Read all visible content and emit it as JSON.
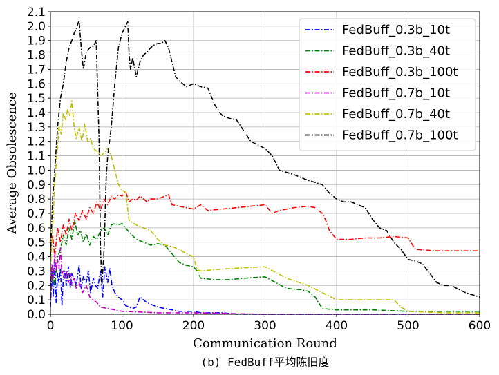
{
  "caption": "(b) FedBuff平均陈旧度",
  "chart_data": {
    "type": "line",
    "xlabel": "Communication Round",
    "ylabel": "Average Obsolescence",
    "xlim": [
      0,
      600
    ],
    "ylim": [
      0,
      2.1
    ],
    "xticks": [
      "0",
      "100",
      "200",
      "300",
      "400",
      "500",
      "600"
    ],
    "yticks": [
      "0.0",
      "0.1",
      "0.2",
      "0.3",
      "0.4",
      "0.5",
      "0.6",
      "0.7",
      "0.8",
      "0.9",
      "1.0",
      "1.1",
      "1.2",
      "1.3",
      "1.4",
      "1.5",
      "1.6",
      "1.7",
      "1.8",
      "1.9",
      "2.0",
      "2.1"
    ],
    "grid": true,
    "legend_position": "top-right",
    "series": [
      {
        "name": "FedBuff_0.3b_10t",
        "color": "#0000ff",
        "x": [
          0,
          2,
          4,
          6,
          8,
          10,
          12,
          14,
          16,
          18,
          20,
          22,
          25,
          28,
          30,
          33,
          36,
          40,
          43,
          46,
          50,
          53,
          56,
          60,
          63,
          66,
          70,
          73,
          76,
          80,
          83,
          86,
          90,
          95,
          100,
          105,
          110,
          115,
          120,
          125,
          130,
          135,
          140,
          150,
          160,
          170,
          180,
          190,
          200,
          210,
          220,
          240,
          260,
          300,
          400,
          500,
          600
        ],
        "y": [
          0.05,
          0.3,
          0.12,
          0.35,
          0.08,
          0.28,
          0.22,
          0.32,
          0.06,
          0.25,
          0.3,
          0.2,
          0.33,
          0.18,
          0.28,
          0.25,
          0.2,
          0.34,
          0.18,
          0.26,
          0.22,
          0.3,
          0.15,
          0.25,
          0.2,
          0.18,
          0.3,
          0.12,
          0.33,
          0.22,
          0.32,
          0.2,
          0.15,
          0.12,
          0.1,
          0.06,
          0.05,
          0.04,
          0.05,
          0.12,
          0.1,
          0.08,
          0.07,
          0.05,
          0.04,
          0.03,
          0.02,
          0.02,
          0.02,
          0.01,
          0.01,
          0.01,
          0.0,
          0.0,
          0.0,
          0.0,
          0.0
        ]
      },
      {
        "name": "FedBuff_0.3b_40t",
        "color": "#008000",
        "x": [
          0,
          3,
          6,
          10,
          14,
          18,
          22,
          26,
          30,
          34,
          38,
          42,
          46,
          50,
          55,
          60,
          65,
          70,
          75,
          80,
          85,
          90,
          95,
          100,
          105,
          110,
          120,
          130,
          140,
          150,
          160,
          170,
          180,
          190,
          200,
          205,
          210,
          230,
          250,
          270,
          300,
          330,
          350,
          360,
          370,
          380,
          400,
          450,
          500,
          550,
          600
        ],
        "y": [
          0.1,
          0.3,
          0.2,
          0.4,
          0.45,
          0.55,
          0.48,
          0.6,
          0.52,
          0.65,
          0.55,
          0.58,
          0.5,
          0.56,
          0.48,
          0.54,
          0.52,
          0.58,
          0.6,
          0.55,
          0.62,
          0.63,
          0.62,
          0.63,
          0.6,
          0.57,
          0.52,
          0.5,
          0.48,
          0.49,
          0.48,
          0.42,
          0.36,
          0.34,
          0.33,
          0.3,
          0.25,
          0.24,
          0.24,
          0.25,
          0.26,
          0.18,
          0.17,
          0.16,
          0.12,
          0.04,
          0.03,
          0.03,
          0.02,
          0.02,
          0.02
        ]
      },
      {
        "name": "FedBuff_0.3b_100t",
        "color": "#ff0000",
        "x": [
          0,
          3,
          6,
          10,
          14,
          18,
          22,
          26,
          30,
          35,
          40,
          45,
          50,
          55,
          60,
          65,
          70,
          75,
          80,
          85,
          90,
          95,
          100,
          105,
          110,
          115,
          120,
          125,
          130,
          135,
          140,
          150,
          160,
          165,
          170,
          180,
          190,
          200,
          210,
          220,
          240,
          260,
          280,
          300,
          310,
          320,
          340,
          360,
          370,
          380,
          385,
          390,
          400,
          420,
          440,
          460,
          480,
          500,
          510,
          540,
          570,
          600
        ],
        "y": [
          0.45,
          0.55,
          0.4,
          0.6,
          0.5,
          0.62,
          0.55,
          0.66,
          0.58,
          0.7,
          0.65,
          0.72,
          0.66,
          0.74,
          0.7,
          0.78,
          0.72,
          0.8,
          0.76,
          0.82,
          0.8,
          0.83,
          0.82,
          0.85,
          0.78,
          0.8,
          0.79,
          0.82,
          0.8,
          0.78,
          0.8,
          0.8,
          0.82,
          0.83,
          0.76,
          0.75,
          0.74,
          0.73,
          0.76,
          0.72,
          0.73,
          0.74,
          0.75,
          0.76,
          0.7,
          0.72,
          0.74,
          0.75,
          0.74,
          0.7,
          0.65,
          0.58,
          0.52,
          0.52,
          0.53,
          0.53,
          0.54,
          0.53,
          0.45,
          0.44,
          0.44,
          0.44
        ]
      },
      {
        "name": "FedBuff_0.7b_10t",
        "color": "#c000c0",
        "x": [
          0,
          2,
          4,
          6,
          8,
          10,
          12,
          14,
          16,
          18,
          20,
          22,
          25,
          28,
          30,
          33,
          36,
          40,
          45,
          50,
          55,
          60,
          65,
          70,
          80,
          90,
          100,
          150,
          200,
          300,
          400,
          500,
          600
        ],
        "y": [
          0.1,
          0.35,
          0.25,
          0.42,
          0.3,
          0.38,
          0.32,
          0.46,
          0.28,
          0.3,
          0.25,
          0.3,
          0.22,
          0.28,
          0.2,
          0.25,
          0.18,
          0.22,
          0.15,
          0.2,
          0.12,
          0.1,
          0.08,
          0.05,
          0.04,
          0.03,
          0.02,
          0.01,
          0.01,
          0.0,
          0.0,
          0.0,
          0.0
        ]
      },
      {
        "name": "FedBuff_0.7b_40t",
        "color": "#c0c000",
        "x": [
          0,
          3,
          6,
          9,
          12,
          15,
          18,
          21,
          24,
          27,
          30,
          33,
          36,
          40,
          44,
          48,
          52,
          56,
          60,
          65,
          70,
          75,
          80,
          85,
          90,
          95,
          100,
          105,
          110,
          120,
          130,
          140,
          150,
          160,
          170,
          180,
          190,
          200,
          205,
          210,
          230,
          260,
          300,
          330,
          360,
          380,
          400,
          450,
          480,
          490,
          500,
          550,
          600
        ],
        "y": [
          0.3,
          0.6,
          0.9,
          1.1,
          1.3,
          1.25,
          1.4,
          1.35,
          1.42,
          1.38,
          1.48,
          1.3,
          1.22,
          1.3,
          1.2,
          1.32,
          1.2,
          1.22,
          1.15,
          1.13,
          1.1,
          1.12,
          1.15,
          1.1,
          1.0,
          0.9,
          0.86,
          0.85,
          0.65,
          0.62,
          0.6,
          0.58,
          0.52,
          0.48,
          0.47,
          0.45,
          0.42,
          0.4,
          0.31,
          0.3,
          0.31,
          0.32,
          0.33,
          0.25,
          0.2,
          0.15,
          0.1,
          0.1,
          0.1,
          0.05,
          0.02,
          0.01,
          0.01
        ]
      },
      {
        "name": "FedBuff_0.7b_100t",
        "color": "#000000",
        "x": [
          0,
          3,
          6,
          10,
          14,
          18,
          22,
          26,
          30,
          33,
          36,
          40,
          43,
          46,
          50,
          55,
          60,
          64,
          68,
          70,
          72,
          75,
          78,
          80,
          85,
          90,
          95,
          100,
          105,
          108,
          110,
          112,
          115,
          120,
          125,
          130,
          135,
          140,
          145,
          150,
          155,
          160,
          165,
          170,
          175,
          180,
          185,
          190,
          200,
          210,
          220,
          230,
          240,
          250,
          260,
          280,
          300,
          310,
          320,
          340,
          360,
          380,
          390,
          400,
          410,
          420,
          440,
          450,
          460,
          470,
          480,
          490,
          500,
          510,
          520,
          540,
          550,
          560,
          580,
          600
        ],
        "y": [
          0.4,
          0.8,
          1.0,
          1.3,
          1.5,
          1.6,
          1.75,
          1.85,
          1.9,
          1.95,
          1.98,
          2.04,
          1.85,
          1.7,
          1.82,
          1.85,
          1.86,
          1.9,
          1.2,
          0.45,
          0.2,
          0.45,
          0.95,
          1.1,
          1.3,
          1.6,
          1.85,
          1.95,
          2.0,
          2.03,
          1.8,
          1.7,
          1.78,
          1.65,
          1.75,
          1.8,
          1.82,
          1.85,
          1.87,
          1.88,
          1.88,
          1.9,
          1.85,
          1.75,
          1.65,
          1.62,
          1.6,
          1.58,
          1.6,
          1.58,
          1.57,
          1.45,
          1.38,
          1.36,
          1.35,
          1.2,
          1.15,
          1.1,
          1.0,
          0.97,
          0.93,
          0.9,
          0.84,
          0.8,
          0.78,
          0.78,
          0.74,
          0.66,
          0.6,
          0.58,
          0.5,
          0.45,
          0.38,
          0.37,
          0.35,
          0.22,
          0.2,
          0.2,
          0.15,
          0.12
        ]
      }
    ]
  }
}
